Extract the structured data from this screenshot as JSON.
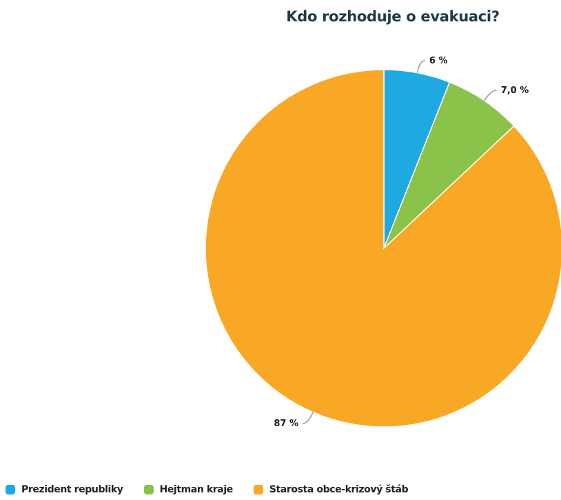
{
  "chart_data": {
    "type": "pie",
    "title": "Kdo rozhoduje o evakuaci?",
    "slices": [
      {
        "name": "Prezident republiky",
        "value": 6,
        "label": "6 %",
        "color": "#1fa9e1"
      },
      {
        "name": "Hejtman kraje",
        "value": 7.0,
        "label": "7,0 %",
        "color": "#8bc34a"
      },
      {
        "name": "Starosta obce-krizový štáb",
        "value": 87,
        "label": "87 %",
        "color": "#f9a825"
      }
    ],
    "legend_position": "bottom-left"
  }
}
